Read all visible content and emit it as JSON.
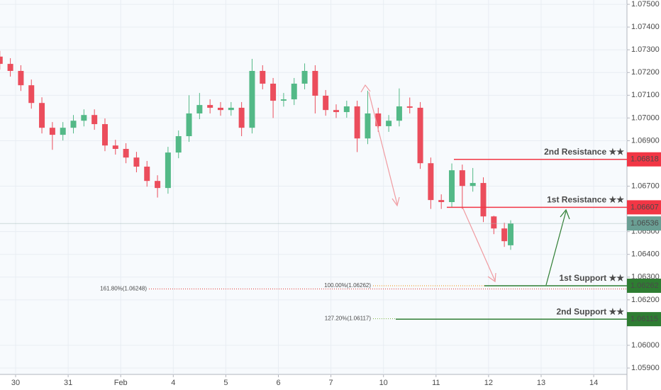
{
  "chart_data": {
    "type": "candlestick",
    "up_color": "#53b987",
    "down_color": "#eb4d5c",
    "grid": true,
    "x": [
      -0.3,
      -0.1,
      0.1,
      0.3,
      0.5,
      0.7,
      0.9,
      1.1,
      1.3,
      1.5,
      1.7,
      1.9,
      2.1,
      2.3,
      2.5,
      2.7,
      2.9,
      3.1,
      3.3,
      3.5,
      3.7,
      3.9,
      4.1,
      4.3,
      4.5,
      4.7,
      4.9,
      5.1,
      5.3,
      5.5,
      5.7,
      5.9,
      6.1,
      6.3,
      6.5,
      6.7,
      6.9,
      7.1,
      7.3,
      7.5,
      7.7,
      7.9,
      8.1,
      8.3,
      8.5,
      8.7,
      8.9,
      9.1,
      9.3,
      9.42
    ],
    "open": [
      1.0727,
      1.07238,
      1.07207,
      1.07144,
      1.07066,
      1.06957,
      1.06926,
      1.06957,
      1.06988,
      1.07013,
      1.06973,
      1.06879,
      1.06864,
      1.06826,
      1.06786,
      1.06723,
      1.06692,
      1.06848,
      1.0692,
      1.0702,
      1.07057,
      1.07045,
      1.07035,
      1.07045,
      1.06957,
      1.07207,
      1.07151,
      1.07076,
      1.07082,
      1.07151,
      1.07207,
      1.07098,
      1.07035,
      1.07026,
      1.07051,
      1.0691,
      1.0702,
      1.06964,
      1.06988,
      1.07051,
      1.07045,
      1.06801,
      1.06639,
      1.0663,
      1.0677,
      1.06701,
      1.06714,
      1.06567,
      1.06514,
      1.0644
    ],
    "high": [
      1.07295,
      1.07263,
      1.07232,
      1.07169,
      1.07091,
      1.06982,
      1.06982,
      1.07013,
      1.07038,
      1.07038,
      1.06998,
      1.06904,
      1.06889,
      1.06851,
      1.06811,
      1.06748,
      1.06873,
      1.06945,
      1.071,
      1.0711,
      1.07082,
      1.0707,
      1.0707,
      1.0707,
      1.0726,
      1.07232,
      1.07176,
      1.0711,
      1.07176,
      1.0724,
      1.07232,
      1.07123,
      1.0706,
      1.07076,
      1.07076,
      1.0712,
      1.07045,
      1.07013,
      1.0713,
      1.0709,
      1.0707,
      1.06826,
      1.06664,
      1.068,
      1.06795,
      1.0678,
      1.06739,
      1.0657,
      1.06539,
      1.0655
    ],
    "low": [
      1.07213,
      1.07182,
      1.07119,
      1.07041,
      1.06932,
      1.0686,
      1.06901,
      1.06932,
      1.06963,
      1.06948,
      1.06854,
      1.06839,
      1.06801,
      1.06761,
      1.06698,
      1.0665,
      1.06667,
      1.06823,
      1.06895,
      1.06995,
      1.0702,
      1.0701,
      1.0701,
      1.0692,
      1.06932,
      1.07126,
      1.07,
      1.0705,
      1.07057,
      1.07126,
      1.0702,
      1.0701,
      1.07,
      1.07001,
      1.0685,
      1.06885,
      1.06939,
      1.06939,
      1.06963,
      1.0702,
      1.06776,
      1.066,
      1.066,
      1.06605,
      1.066,
      1.06676,
      1.06542,
      1.06489,
      1.06433,
      1.0642
    ],
    "close": [
      1.07238,
      1.07207,
      1.07144,
      1.07066,
      1.06957,
      1.06926,
      1.06957,
      1.06988,
      1.07013,
      1.06973,
      1.06879,
      1.06864,
      1.06826,
      1.06786,
      1.06723,
      1.06692,
      1.06848,
      1.0692,
      1.0702,
      1.07057,
      1.07045,
      1.07035,
      1.07045,
      1.06957,
      1.07207,
      1.07151,
      1.07076,
      1.07082,
      1.07151,
      1.07207,
      1.07098,
      1.07035,
      1.07026,
      1.07051,
      1.0691,
      1.0702,
      1.06964,
      1.06988,
      1.07051,
      1.07045,
      1.06801,
      1.06639,
      1.0663,
      1.0677,
      1.06701,
      1.06714,
      1.06567,
      1.06514,
      1.06458,
      1.06536
    ],
    "xlim": [
      -0.297,
      11.633
    ],
    "xticks": [
      {
        "value": 0,
        "label": "30"
      },
      {
        "value": 1,
        "label": "31"
      },
      {
        "value": 2,
        "label": "Feb"
      },
      {
        "value": 3,
        "label": "4"
      },
      {
        "value": 4,
        "label": "5"
      },
      {
        "value": 5,
        "label": "6"
      },
      {
        "value": 6,
        "label": "7"
      },
      {
        "value": 7,
        "label": "10"
      },
      {
        "value": 8,
        "label": "11"
      },
      {
        "value": 9,
        "label": "12"
      },
      {
        "value": 10,
        "label": "13"
      },
      {
        "value": 11,
        "label": "14"
      }
    ],
    "ylim": [
      1.05872,
      1.07519
    ],
    "yticks": [
      {
        "value": 1.075,
        "label": "1.07500"
      },
      {
        "value": 1.074,
        "label": "1.07400"
      },
      {
        "value": 1.073,
        "label": "1.07300"
      },
      {
        "value": 1.072,
        "label": "1.07200"
      },
      {
        "value": 1.071,
        "label": "1.07100"
      },
      {
        "value": 1.07,
        "label": "1.07000"
      },
      {
        "value": 1.069,
        "label": "1.06900"
      },
      {
        "value": 1.067,
        "label": "1.06700"
      },
      {
        "value": 1.065,
        "label": "1.06500"
      },
      {
        "value": 1.064,
        "label": "1.06400"
      },
      {
        "value": 1.063,
        "label": "1.06300"
      },
      {
        "value": 1.062,
        "label": "1.06200"
      },
      {
        "value": 1.06,
        "label": "1.06000"
      },
      {
        "value": 1.059,
        "label": "1.05900"
      }
    ],
    "current_price": 1.06536,
    "levels": [
      {
        "name": "2nd Resistance ★★",
        "value": 1.06818,
        "color": "#f23645"
      },
      {
        "name": "1st Resistance ★★",
        "value": 1.06607,
        "color": "#f23645"
      },
      {
        "name": "1st Support ★★",
        "value": 1.06262,
        "color": "#2e7d32"
      },
      {
        "name": "2nd Support ★★",
        "value": 1.06115,
        "color": "#2e7d32"
      }
    ],
    "fib_levels": [
      {
        "label": "161.80%(1.06248)",
        "value": 1.06248,
        "color": "#e53935"
      },
      {
        "label": "100.00%(1.06262)",
        "value": 1.06262,
        "color": "#ef8c00"
      },
      {
        "label": "127.20%(1.06117)",
        "value": 1.06117,
        "color": "#7cb342"
      }
    ]
  }
}
